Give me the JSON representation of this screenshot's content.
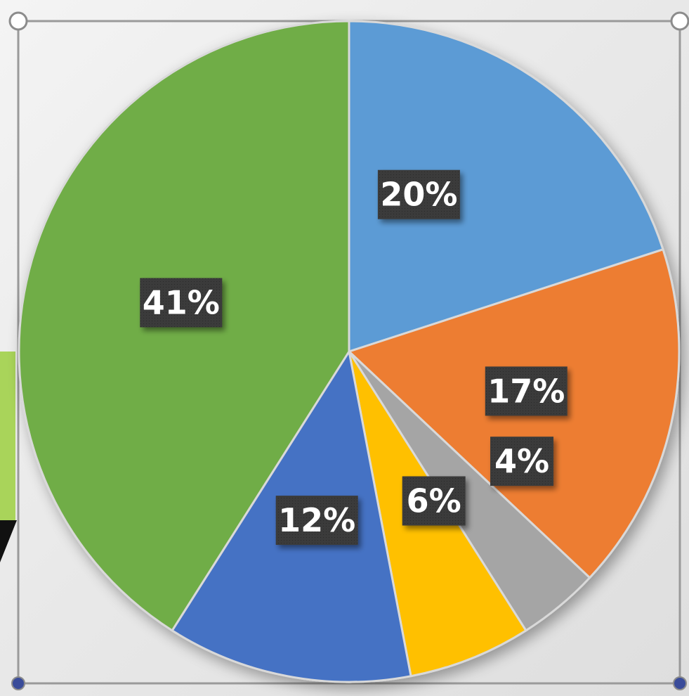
{
  "chart_data": {
    "type": "pie",
    "title": "",
    "slices": [
      {
        "label": "20%",
        "value": 20,
        "color": "#5b9bd5"
      },
      {
        "label": "17%",
        "value": 17,
        "color": "#ed7d31"
      },
      {
        "label": "4%",
        "value": 4,
        "color": "#a5a5a5"
      },
      {
        "label": "6%",
        "value": 6,
        "color": "#ffc000"
      },
      {
        "label": "12%",
        "value": 12,
        "color": "#4472c4"
      },
      {
        "label": "41%",
        "value": 41,
        "color": "#70ad47"
      }
    ],
    "start_angle_deg": 0,
    "direction": "clockwise",
    "data_labels": "percent",
    "legend": "none"
  }
}
